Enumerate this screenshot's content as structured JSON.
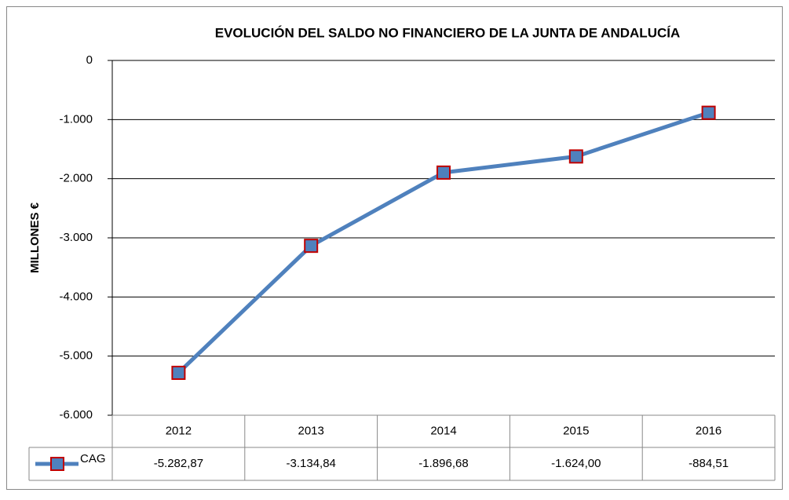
{
  "chart_data": {
    "type": "line",
    "title": "EVOLUCIÓN DEL SALDO NO FINANCIERO DE LA JUNTA DE ANDALUCÍA",
    "y_label": "MILLONES €",
    "categories": [
      "2012",
      "2013",
      "2014",
      "2015",
      "2016"
    ],
    "series": [
      {
        "name": "CAG",
        "color": "#4f81bd",
        "marker_edge": "#c00000",
        "values": [
          -5282.87,
          -3134.84,
          -1896.68,
          -1624.0,
          -884.51
        ],
        "value_labels": [
          "-5.282,87",
          "-3.134,84",
          "-1.896,68",
          "-1.624,00",
          "-884,51"
        ]
      }
    ],
    "ylim": [
      -6000,
      0
    ],
    "yticks": [
      0,
      {
        "value": -1000,
        "label": "-1.000"
      },
      {
        "value": -2000,
        "label": "-2.000"
      },
      {
        "value": -3000,
        "label": "-3.000"
      },
      {
        "value": -4000,
        "label": "-4.000"
      },
      {
        "value": -5000,
        "label": "-5.000"
      },
      {
        "value": -6000,
        "label": "-6.000"
      }
    ],
    "grid": true,
    "data_table": true
  }
}
